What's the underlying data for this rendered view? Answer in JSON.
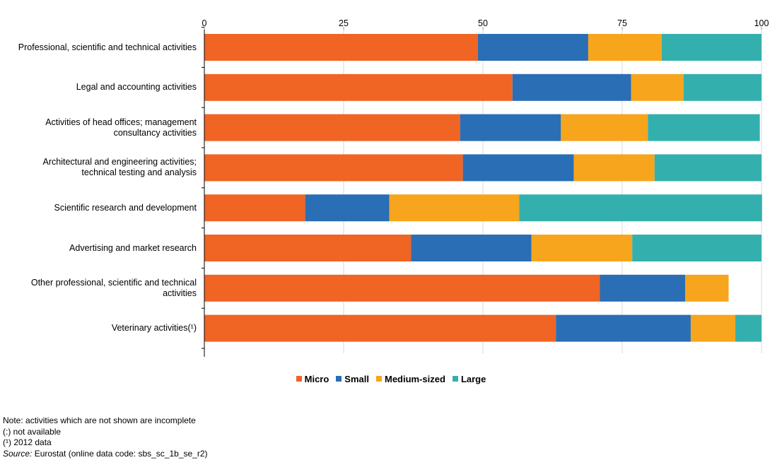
{
  "chart_data": {
    "type": "bar",
    "orientation": "horizontal",
    "stacked": true,
    "title": "",
    "xlabel": "",
    "ylabel": "",
    "xlim": [
      0,
      100
    ],
    "xticks": [
      "0",
      "25",
      "50",
      "75",
      "100"
    ],
    "xtick_values": [
      0,
      25,
      50,
      75,
      100
    ],
    "categories": [
      "Professional, scientific and technical activities",
      "Legal and accounting activities",
      "Activities of head offices; management\nconsultancy activities",
      "Architectural and engineering activities;\ntechnical testing and analysis",
      "Scientific research and development",
      "Advertising and market research",
      "Other professional, scientific and technical\nactivities",
      "Veterinary activities(¹)"
    ],
    "series": [
      {
        "name": "Micro",
        "color": "#f06424",
        "values": [
          49.1,
          55.3,
          45.9,
          46.4,
          18.1,
          37.1,
          71.0,
          63.1
        ]
      },
      {
        "name": "Small",
        "color": "#2a6eb5",
        "values": [
          19.8,
          21.3,
          18.1,
          19.9,
          15.1,
          21.6,
          15.3,
          24.2
        ]
      },
      {
        "name": "Medium-sized",
        "color": "#f7a51c",
        "values": [
          13.2,
          9.4,
          15.6,
          14.5,
          23.3,
          18.1,
          7.8,
          8.0
        ]
      },
      {
        "name": "Large",
        "color": "#33b0ae",
        "values": [
          17.9,
          14.0,
          20.1,
          19.2,
          43.6,
          23.2,
          0,
          4.7
        ]
      }
    ],
    "grid": true,
    "legend_position": "bottom-center"
  },
  "notes": {
    "note": "Note:  activities which are not shown are incomplete",
    "not_available": "(:) not available",
    "footnote_1": "(¹) 2012 data",
    "source_label": "Source:",
    "source_text": " Eurostat (online data code: sbs_sc_1b_se_r2)"
  }
}
